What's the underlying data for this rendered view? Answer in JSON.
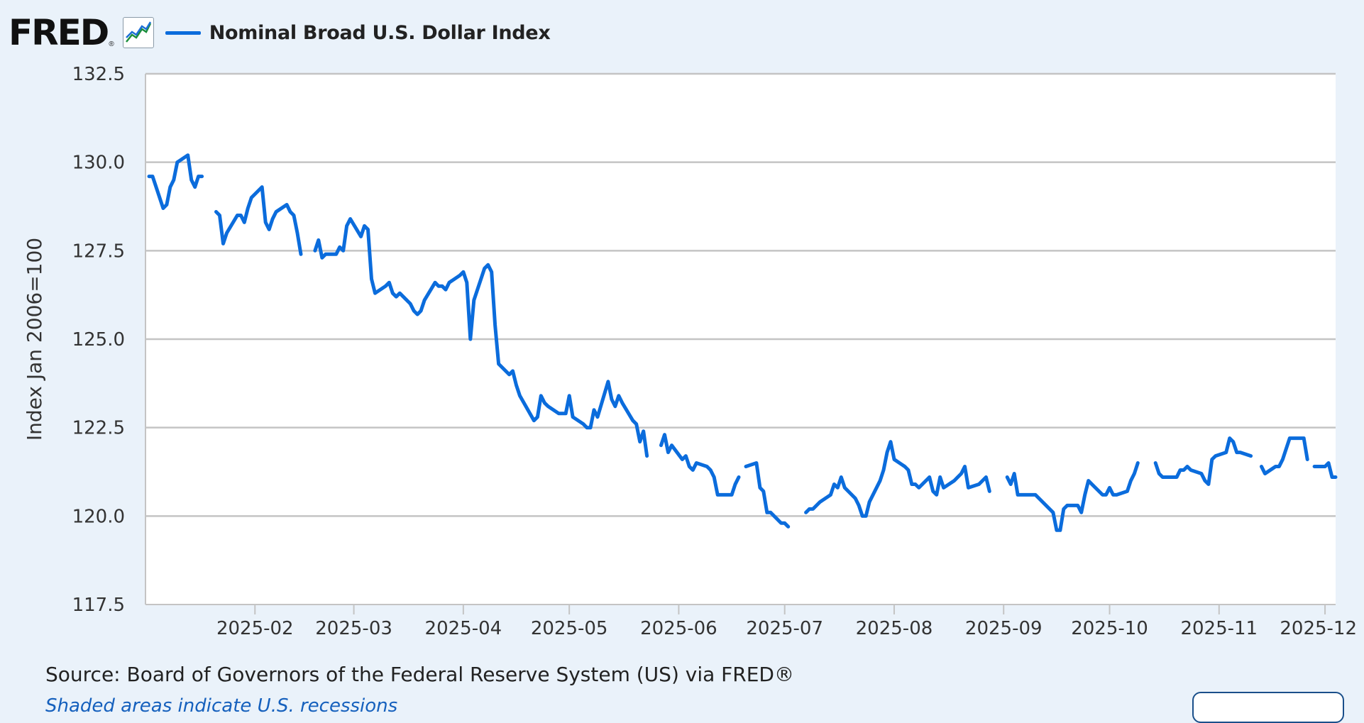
{
  "header": {
    "logo_text": "FRED",
    "logo_reg": "®",
    "legend_label": "Nominal Broad U.S. Dollar Index",
    "line_color": "#0b6cdc"
  },
  "source_text": "Source: Board of Governors of the Federal Reserve System (US) via FRED®",
  "footer_link": "Shaded areas indicate U.S. recessions",
  "chart_data": {
    "type": "line",
    "title": "",
    "ylabel": "Index Jan 2006=100",
    "xlabel": "",
    "ylim": [
      117.5,
      132.5
    ],
    "yticks": [
      117.5,
      120.0,
      122.5,
      125.0,
      127.5,
      130.0,
      132.5
    ],
    "ytick_labels": [
      "117.5",
      "120.0",
      "122.5",
      "125.0",
      "127.5",
      "130.0",
      "132.5"
    ],
    "xlim": [
      "2025-01-01",
      "2025-12-04"
    ],
    "xticks": [
      "2025-02-01",
      "2025-03-01",
      "2025-04-01",
      "2025-05-01",
      "2025-06-01",
      "2025-07-01",
      "2025-08-01",
      "2025-09-01",
      "2025-10-01",
      "2025-11-01",
      "2025-12-01"
    ],
    "xtick_labels": [
      "2025-02",
      "2025-03",
      "2025-04",
      "2025-05",
      "2025-06",
      "2025-07",
      "2025-08",
      "2025-09",
      "2025-10",
      "2025-11",
      "2025-12"
    ],
    "grid": "horizontal",
    "series": [
      {
        "name": "Nominal Broad U.S. Dollar Index",
        "color": "#0b6cdc",
        "segments": [
          [
            [
              "2025-01-02",
              129.6
            ],
            [
              "2025-01-03",
              129.6
            ],
            [
              "2025-01-06",
              128.7
            ],
            [
              "2025-01-07",
              128.8
            ],
            [
              "2025-01-08",
              129.3
            ],
            [
              "2025-01-09",
              129.5
            ],
            [
              "2025-01-10",
              130.0
            ],
            [
              "2025-01-13",
              130.2
            ],
            [
              "2025-01-14",
              129.5
            ],
            [
              "2025-01-15",
              129.3
            ],
            [
              "2025-01-16",
              129.6
            ],
            [
              "2025-01-17",
              129.6
            ]
          ],
          [
            [
              "2025-01-21",
              128.6
            ],
            [
              "2025-01-22",
              128.5
            ],
            [
              "2025-01-23",
              127.7
            ],
            [
              "2025-01-24",
              128.0
            ],
            [
              "2025-01-27",
              128.5
            ],
            [
              "2025-01-28",
              128.5
            ],
            [
              "2025-01-29",
              128.3
            ],
            [
              "2025-01-30",
              128.7
            ],
            [
              "2025-01-31",
              129.0
            ],
            [
              "2025-02-03",
              129.3
            ],
            [
              "2025-02-04",
              128.3
            ],
            [
              "2025-02-05",
              128.1
            ],
            [
              "2025-02-06",
              128.4
            ],
            [
              "2025-02-07",
              128.6
            ],
            [
              "2025-02-10",
              128.8
            ],
            [
              "2025-02-11",
              128.6
            ],
            [
              "2025-02-12",
              128.5
            ],
            [
              "2025-02-13",
              128.0
            ],
            [
              "2025-02-14",
              127.4
            ]
          ],
          [
            [
              "2025-02-18",
              127.5
            ],
            [
              "2025-02-19",
              127.8
            ],
            [
              "2025-02-20",
              127.3
            ],
            [
              "2025-02-21",
              127.4
            ],
            [
              "2025-02-24",
              127.4
            ],
            [
              "2025-02-25",
              127.6
            ],
            [
              "2025-02-26",
              127.5
            ],
            [
              "2025-02-27",
              128.2
            ],
            [
              "2025-02-28",
              128.4
            ],
            [
              "2025-03-03",
              127.9
            ],
            [
              "2025-03-04",
              128.2
            ],
            [
              "2025-03-05",
              128.1
            ],
            [
              "2025-03-06",
              126.7
            ],
            [
              "2025-03-07",
              126.3
            ],
            [
              "2025-03-10",
              126.5
            ],
            [
              "2025-03-11",
              126.6
            ],
            [
              "2025-03-12",
              126.3
            ],
            [
              "2025-03-13",
              126.2
            ],
            [
              "2025-03-14",
              126.3
            ],
            [
              "2025-03-17",
              126.0
            ],
            [
              "2025-03-18",
              125.8
            ],
            [
              "2025-03-19",
              125.7
            ],
            [
              "2025-03-20",
              125.8
            ],
            [
              "2025-03-21",
              126.1
            ],
            [
              "2025-03-24",
              126.6
            ],
            [
              "2025-03-25",
              126.5
            ],
            [
              "2025-03-26",
              126.5
            ],
            [
              "2025-03-27",
              126.4
            ],
            [
              "2025-03-28",
              126.6
            ],
            [
              "2025-03-31",
              126.8
            ],
            [
              "2025-04-01",
              126.9
            ],
            [
              "2025-04-02",
              126.6
            ],
            [
              "2025-04-03",
              125.0
            ],
            [
              "2025-04-04",
              126.1
            ],
            [
              "2025-04-07",
              127.0
            ],
            [
              "2025-04-08",
              127.1
            ],
            [
              "2025-04-09",
              126.9
            ],
            [
              "2025-04-10",
              125.4
            ],
            [
              "2025-04-11",
              124.3
            ],
            [
              "2025-04-14",
              124.0
            ],
            [
              "2025-04-15",
              124.1
            ],
            [
              "2025-04-16",
              123.7
            ],
            [
              "2025-04-17",
              123.4
            ],
            [
              "2025-04-21",
              122.7
            ],
            [
              "2025-04-22",
              122.8
            ],
            [
              "2025-04-23",
              123.4
            ],
            [
              "2025-04-24",
              123.2
            ],
            [
              "2025-04-25",
              123.1
            ],
            [
              "2025-04-28",
              122.9
            ],
            [
              "2025-04-29",
              122.9
            ],
            [
              "2025-04-30",
              122.9
            ],
            [
              "2025-05-01",
              123.4
            ],
            [
              "2025-05-02",
              122.8
            ],
            [
              "2025-05-05",
              122.6
            ],
            [
              "2025-05-06",
              122.5
            ],
            [
              "2025-05-07",
              122.5
            ],
            [
              "2025-05-08",
              123.0
            ],
            [
              "2025-05-09",
              122.8
            ],
            [
              "2025-05-12",
              123.8
            ],
            [
              "2025-05-13",
              123.3
            ],
            [
              "2025-05-14",
              123.1
            ],
            [
              "2025-05-15",
              123.4
            ],
            [
              "2025-05-16",
              123.2
            ],
            [
              "2025-05-19",
              122.7
            ],
            [
              "2025-05-20",
              122.6
            ],
            [
              "2025-05-21",
              122.1
            ],
            [
              "2025-05-22",
              122.4
            ],
            [
              "2025-05-23",
              121.7
            ]
          ],
          [
            [
              "2025-05-27",
              122.0
            ],
            [
              "2025-05-28",
              122.3
            ],
            [
              "2025-05-29",
              121.8
            ],
            [
              "2025-05-30",
              122.0
            ],
            [
              "2025-06-02",
              121.6
            ],
            [
              "2025-06-03",
              121.7
            ],
            [
              "2025-06-04",
              121.4
            ],
            [
              "2025-06-05",
              121.3
            ],
            [
              "2025-06-06",
              121.5
            ],
            [
              "2025-06-09",
              121.4
            ],
            [
              "2025-06-10",
              121.3
            ],
            [
              "2025-06-11",
              121.1
            ],
            [
              "2025-06-12",
              120.6
            ],
            [
              "2025-06-13",
              120.6
            ],
            [
              "2025-06-16",
              120.6
            ],
            [
              "2025-06-17",
              120.9
            ],
            [
              "2025-06-18",
              121.1
            ]
          ],
          [
            [
              "2025-06-20",
              121.4
            ],
            [
              "2025-06-23",
              121.5
            ],
            [
              "2025-06-24",
              120.8
            ],
            [
              "2025-06-25",
              120.7
            ],
            [
              "2025-06-26",
              120.1
            ],
            [
              "2025-06-27",
              120.1
            ],
            [
              "2025-06-30",
              119.8
            ],
            [
              "2025-07-01",
              119.8
            ],
            [
              "2025-07-02",
              119.7
            ]
          ],
          [
            [
              "2025-07-07",
              120.1
            ],
            [
              "2025-07-08",
              120.2
            ],
            [
              "2025-07-09",
              120.2
            ],
            [
              "2025-07-10",
              120.3
            ],
            [
              "2025-07-11",
              120.4
            ],
            [
              "2025-07-14",
              120.6
            ],
            [
              "2025-07-15",
              120.9
            ],
            [
              "2025-07-16",
              120.8
            ],
            [
              "2025-07-17",
              121.1
            ],
            [
              "2025-07-18",
              120.8
            ],
            [
              "2025-07-21",
              120.5
            ],
            [
              "2025-07-22",
              120.3
            ],
            [
              "2025-07-23",
              120.0
            ],
            [
              "2025-07-24",
              120.0
            ],
            [
              "2025-07-25",
              120.4
            ],
            [
              "2025-07-28",
              121.0
            ],
            [
              "2025-07-29",
              121.3
            ],
            [
              "2025-07-30",
              121.8
            ],
            [
              "2025-07-31",
              122.1
            ],
            [
              "2025-08-01",
              121.6
            ],
            [
              "2025-08-04",
              121.4
            ],
            [
              "2025-08-05",
              121.3
            ],
            [
              "2025-08-06",
              120.9
            ],
            [
              "2025-08-07",
              120.9
            ],
            [
              "2025-08-08",
              120.8
            ],
            [
              "2025-08-11",
              121.1
            ],
            [
              "2025-08-12",
              120.7
            ],
            [
              "2025-08-13",
              120.6
            ],
            [
              "2025-08-14",
              121.1
            ],
            [
              "2025-08-15",
              120.8
            ],
            [
              "2025-08-18",
              121.0
            ],
            [
              "2025-08-19",
              121.1
            ],
            [
              "2025-08-20",
              121.2
            ],
            [
              "2025-08-21",
              121.4
            ],
            [
              "2025-08-22",
              120.8
            ],
            [
              "2025-08-25",
              120.9
            ],
            [
              "2025-08-26",
              121.0
            ],
            [
              "2025-08-27",
              121.1
            ],
            [
              "2025-08-28",
              120.7
            ]
          ],
          [
            [
              "2025-09-02",
              121.1
            ],
            [
              "2025-09-03",
              120.9
            ],
            [
              "2025-09-04",
              121.2
            ],
            [
              "2025-09-05",
              120.6
            ],
            [
              "2025-09-08",
              120.6
            ],
            [
              "2025-09-09",
              120.6
            ],
            [
              "2025-09-10",
              120.6
            ],
            [
              "2025-09-11",
              120.5
            ],
            [
              "2025-09-12",
              120.4
            ],
            [
              "2025-09-15",
              120.1
            ],
            [
              "2025-09-16",
              119.6
            ],
            [
              "2025-09-17",
              119.6
            ],
            [
              "2025-09-18",
              120.2
            ],
            [
              "2025-09-19",
              120.3
            ],
            [
              "2025-09-22",
              120.3
            ],
            [
              "2025-09-23",
              120.1
            ],
            [
              "2025-09-24",
              120.6
            ],
            [
              "2025-09-25",
              121.0
            ],
            [
              "2025-09-26",
              120.9
            ],
            [
              "2025-09-29",
              120.6
            ],
            [
              "2025-09-30",
              120.6
            ],
            [
              "2025-10-01",
              120.8
            ],
            [
              "2025-10-02",
              120.6
            ],
            [
              "2025-10-03",
              120.6
            ],
            [
              "2025-10-06",
              120.7
            ],
            [
              "2025-10-07",
              121.0
            ],
            [
              "2025-10-08",
              121.2
            ],
            [
              "2025-10-09",
              121.5
            ]
          ],
          [
            [
              "2025-10-14",
              121.5
            ],
            [
              "2025-10-15",
              121.2
            ],
            [
              "2025-10-16",
              121.1
            ],
            [
              "2025-10-17",
              121.1
            ],
            [
              "2025-10-20",
              121.1
            ],
            [
              "2025-10-21",
              121.3
            ],
            [
              "2025-10-22",
              121.3
            ],
            [
              "2025-10-23",
              121.4
            ],
            [
              "2025-10-24",
              121.3
            ],
            [
              "2025-10-27",
              121.2
            ],
            [
              "2025-10-28",
              121.0
            ],
            [
              "2025-10-29",
              120.9
            ],
            [
              "2025-10-30",
              121.6
            ],
            [
              "2025-10-31",
              121.7
            ],
            [
              "2025-11-03",
              121.8
            ],
            [
              "2025-11-04",
              122.2
            ],
            [
              "2025-11-05",
              122.1
            ],
            [
              "2025-11-06",
              121.8
            ],
            [
              "2025-11-07",
              121.8
            ],
            [
              "2025-11-10",
              121.7
            ]
          ],
          [
            [
              "2025-11-13",
              121.4
            ],
            [
              "2025-11-14",
              121.2
            ],
            [
              "2025-11-17",
              121.4
            ],
            [
              "2025-11-18",
              121.4
            ],
            [
              "2025-11-19",
              121.6
            ],
            [
              "2025-11-20",
              121.9
            ],
            [
              "2025-11-21",
              122.2
            ],
            [
              "2025-11-24",
              122.2
            ],
            [
              "2025-11-25",
              122.2
            ],
            [
              "2025-11-26",
              121.6
            ]
          ],
          [
            [
              "2025-11-28",
              121.4
            ],
            [
              "2025-12-01",
              121.4
            ],
            [
              "2025-12-02",
              121.5
            ],
            [
              "2025-12-03",
              121.1
            ],
            [
              "2025-12-04",
              121.1
            ]
          ]
        ]
      }
    ]
  }
}
